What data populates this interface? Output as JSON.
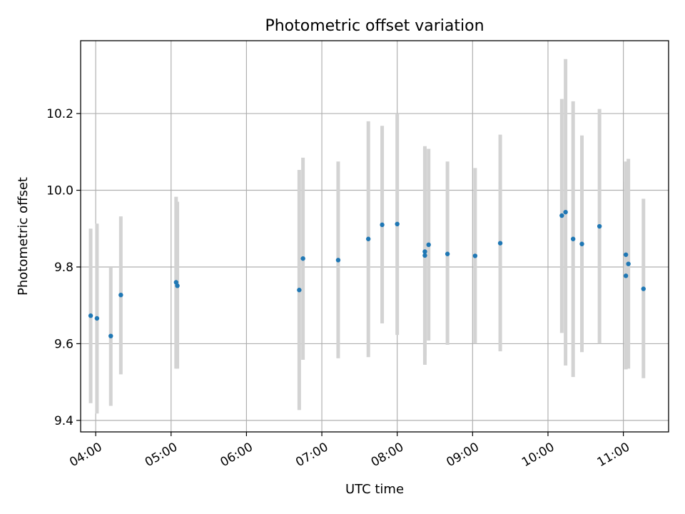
{
  "chart_data": {
    "type": "scatter",
    "title": "Photometric offset variation",
    "xlabel": "UTC time",
    "ylabel": "Photometric offset",
    "x_tick_labels": [
      "04:00",
      "05:00",
      "06:00",
      "07:00",
      "08:00",
      "09:00",
      "10:00",
      "11:00"
    ],
    "y_tick_labels": [
      "9.4",
      "9.6",
      "9.8",
      "10.0",
      "10.2"
    ],
    "xlim_hours": [
      3.8,
      11.6
    ],
    "ylim": [
      9.37,
      10.39
    ],
    "grid": true,
    "colors": {
      "point": "#1f77b4",
      "errorbar": "#d3d3d3",
      "grid": "#b0b0b0",
      "axes": "#000000"
    },
    "points": [
      {
        "time": "03:56",
        "offset": 9.673,
        "low": 9.445,
        "high": 9.9
      },
      {
        "time": "04:01",
        "offset": 9.666,
        "low": 9.418,
        "high": 9.913
      },
      {
        "time": "04:12",
        "offset": 9.62,
        "low": 9.438,
        "high": 9.798
      },
      {
        "time": "04:20",
        "offset": 9.727,
        "low": 9.52,
        "high": 9.932
      },
      {
        "time": "05:04",
        "offset": 9.76,
        "low": 9.535,
        "high": 9.983
      },
      {
        "time": "05:05",
        "offset": 9.751,
        "low": 9.535,
        "high": 9.97
      },
      {
        "time": "06:42",
        "offset": 9.74,
        "low": 9.427,
        "high": 10.053
      },
      {
        "time": "06:45",
        "offset": 9.822,
        "low": 9.558,
        "high": 10.085
      },
      {
        "time": "07:13",
        "offset": 9.818,
        "low": 9.562,
        "high": 10.075
      },
      {
        "time": "07:37",
        "offset": 9.873,
        "low": 9.565,
        "high": 10.18
      },
      {
        "time": "07:48",
        "offset": 9.91,
        "low": 9.653,
        "high": 10.168
      },
      {
        "time": "08:00",
        "offset": 9.912,
        "low": 9.623,
        "high": 10.2
      },
      {
        "time": "08:22",
        "offset": 9.84,
        "low": 9.545,
        "high": 10.115
      },
      {
        "time": "08:22",
        "offset": 9.83,
        "low": 9.57,
        "high": 10.11
      },
      {
        "time": "08:25",
        "offset": 9.858,
        "low": 9.608,
        "high": 10.108
      },
      {
        "time": "08:40",
        "offset": 9.834,
        "low": 9.597,
        "high": 10.075
      },
      {
        "time": "09:02",
        "offset": 9.829,
        "low": 9.6,
        "high": 10.058
      },
      {
        "time": "09:22",
        "offset": 9.862,
        "low": 9.58,
        "high": 10.145
      },
      {
        "time": "10:11",
        "offset": 9.934,
        "low": 9.628,
        "high": 10.238
      },
      {
        "time": "10:14",
        "offset": 9.943,
        "low": 9.543,
        "high": 10.342
      },
      {
        "time": "10:20",
        "offset": 9.873,
        "low": 9.513,
        "high": 10.232
      },
      {
        "time": "10:27",
        "offset": 9.86,
        "low": 9.578,
        "high": 10.143
      },
      {
        "time": "10:41",
        "offset": 9.906,
        "low": 9.6,
        "high": 10.212
      },
      {
        "time": "11:02",
        "offset": 9.832,
        "low": 9.59,
        "high": 10.075
      },
      {
        "time": "11:02",
        "offset": 9.777,
        "low": 9.533,
        "high": 10.022
      },
      {
        "time": "11:04",
        "offset": 9.808,
        "low": 9.535,
        "high": 10.082
      },
      {
        "time": "11:16",
        "offset": 9.743,
        "low": 9.51,
        "high": 9.978
      }
    ]
  }
}
